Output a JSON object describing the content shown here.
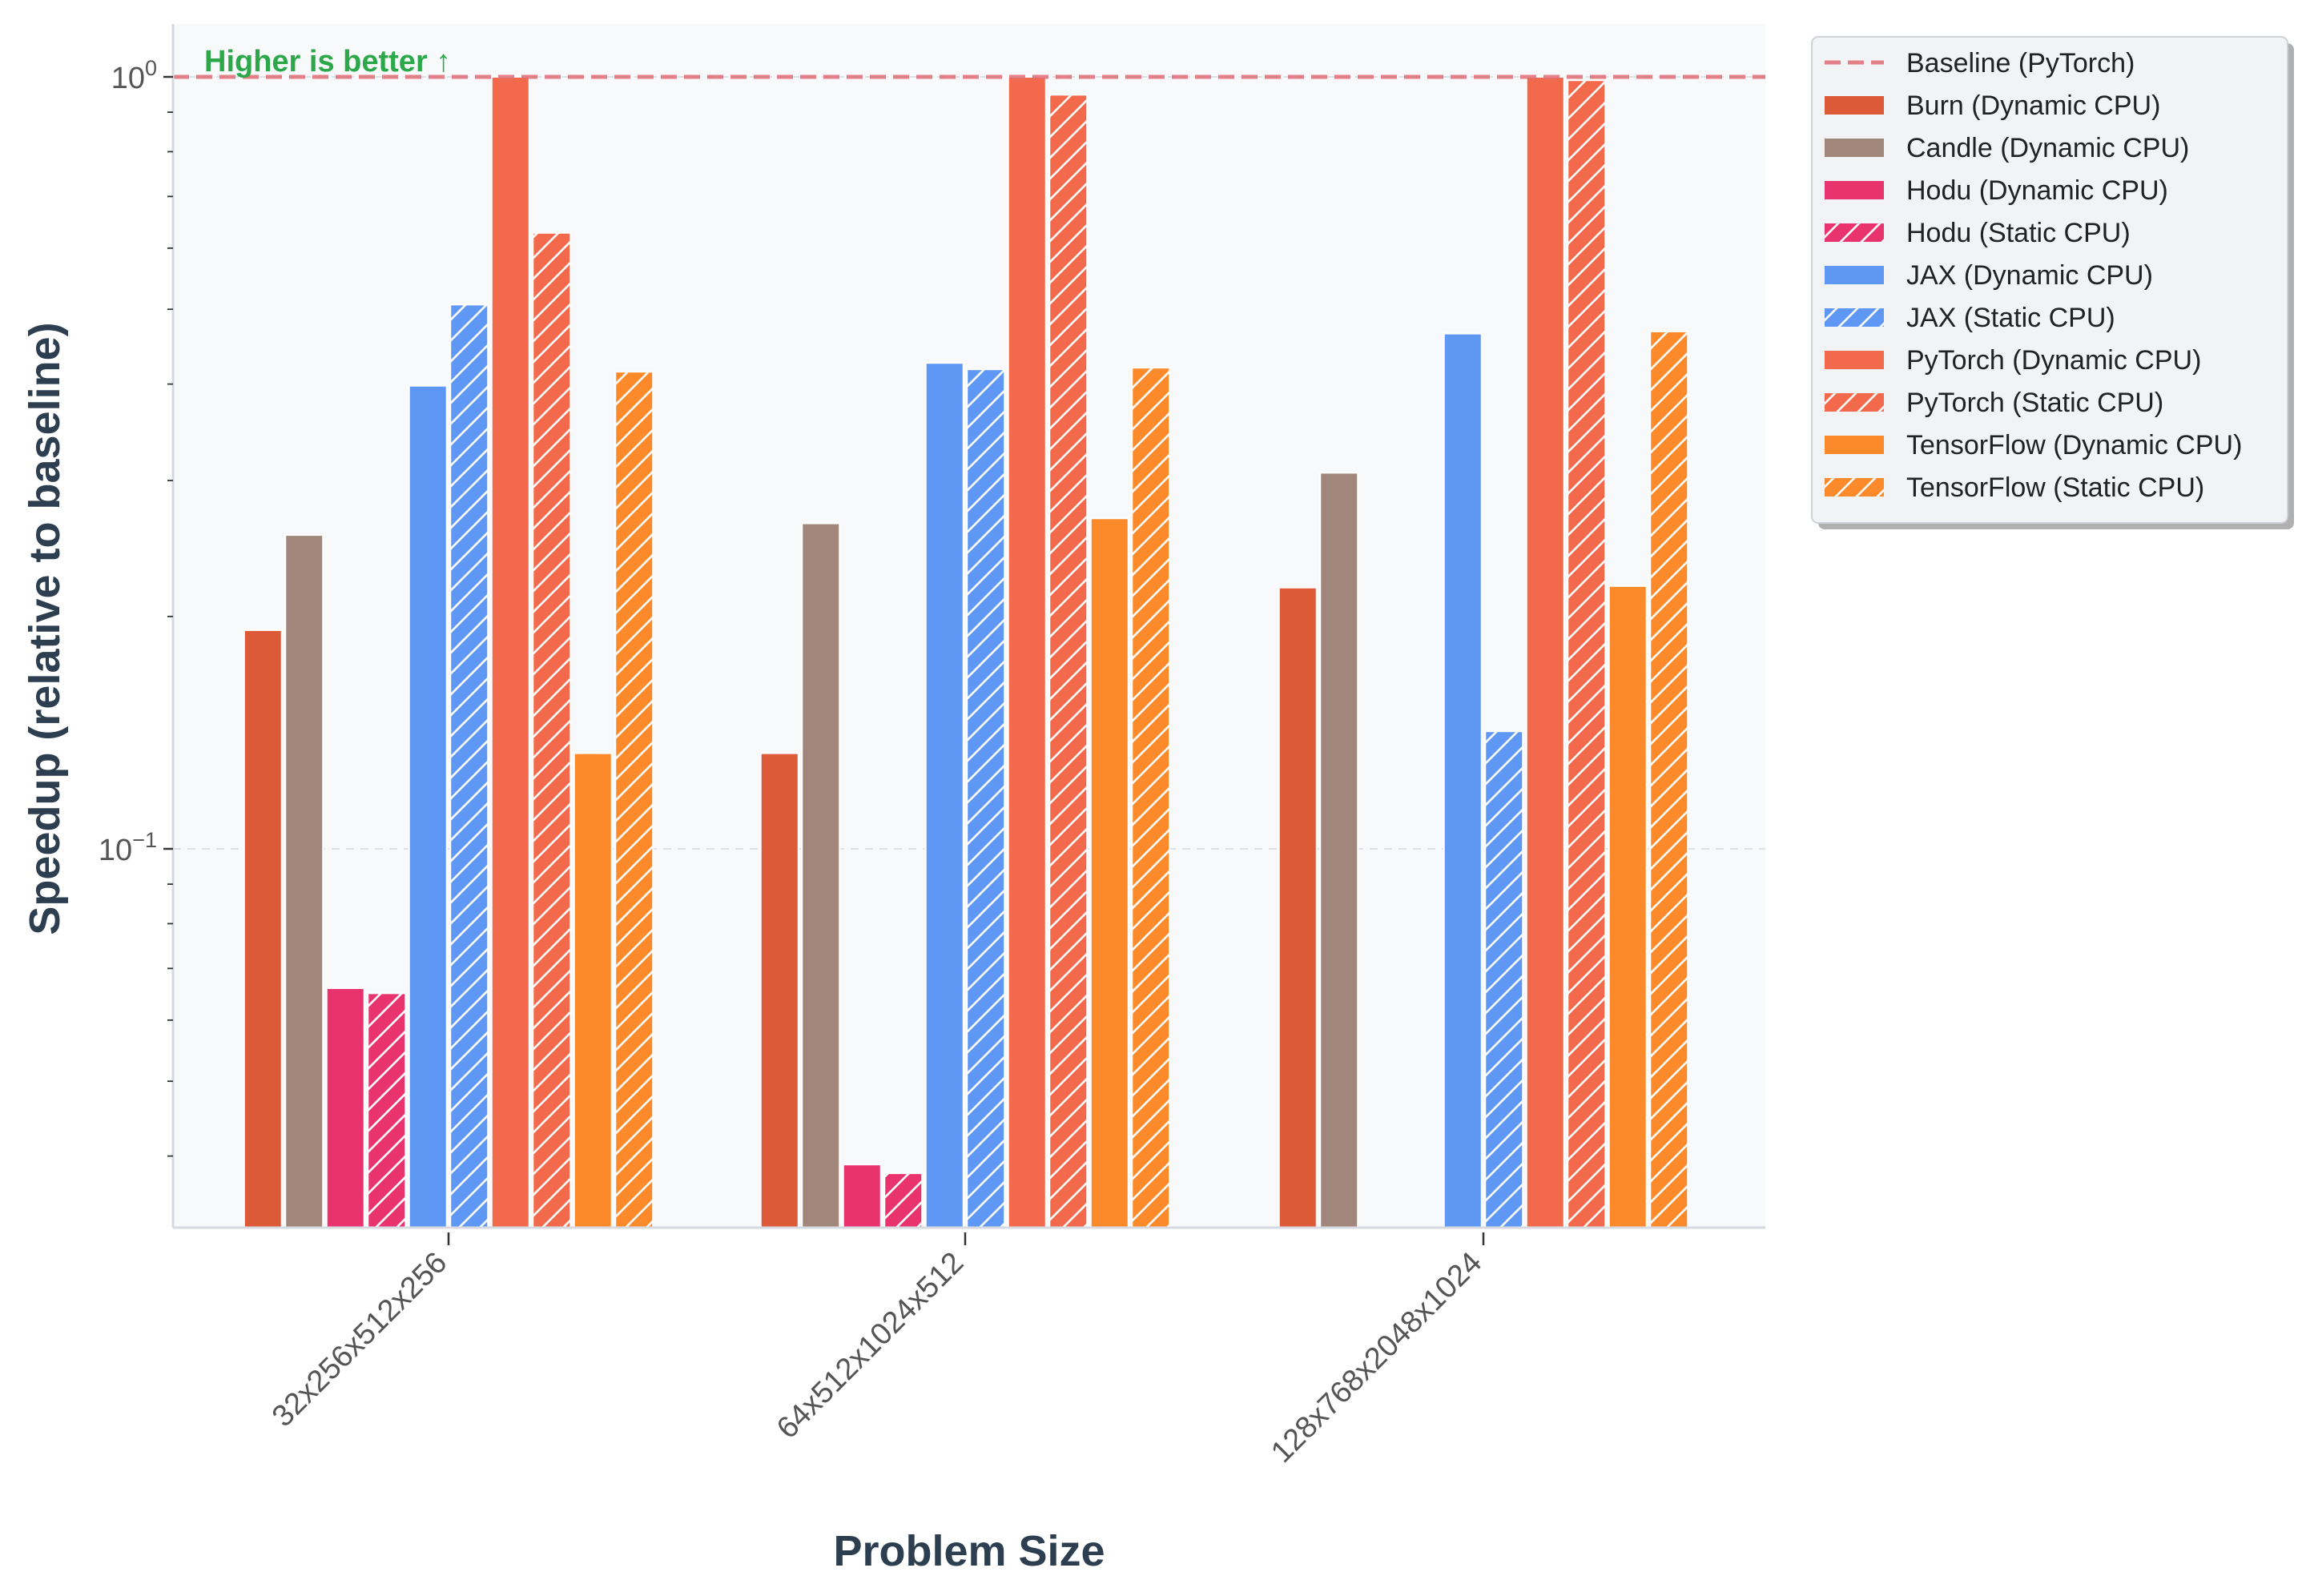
{
  "chart_data": {
    "type": "bar",
    "title": "",
    "xlabel": "Problem Size",
    "ylabel": "Speedup (relative to baseline)",
    "yscale": "log",
    "ylim": [
      0.032,
      1.2
    ],
    "y_ticks": [
      {
        "value": 1,
        "base": "10",
        "exp": "0"
      },
      {
        "value": 0.1,
        "base": "10",
        "exp": "−1"
      }
    ],
    "grid": true,
    "legend_position": "outside-right-top",
    "annotation": "Higher is better ↑",
    "categories": [
      "32x256x512x256",
      "64x512x1024x512",
      "128x768x2048x1024"
    ],
    "baseline": {
      "name": "Baseline (PyTorch)",
      "value": 1.0,
      "color": "#e06c75"
    },
    "series": [
      {
        "name": "Burn (Dynamic CPU)",
        "color": "#dc5a38",
        "hatch": false,
        "values": [
          0.192,
          0.133,
          0.218
        ]
      },
      {
        "name": "Candle (Dynamic CPU)",
        "color": "#a1867c",
        "hatch": false,
        "values": [
          0.255,
          0.264,
          0.307
        ]
      },
      {
        "name": "Hodu (Dynamic CPU)",
        "color": "#e8336f",
        "hatch": false,
        "values": [
          0.066,
          0.039,
          null
        ]
      },
      {
        "name": "Hodu (Static CPU)",
        "color": "#e8336f",
        "hatch": true,
        "values": [
          0.065,
          0.038,
          null
        ]
      },
      {
        "name": "JAX (Dynamic CPU)",
        "color": "#5f97f5",
        "hatch": false,
        "values": [
          0.398,
          0.426,
          0.465
        ]
      },
      {
        "name": "JAX (Static CPU)",
        "color": "#5f97f5",
        "hatch": true,
        "values": [
          0.507,
          0.418,
          0.142
        ]
      },
      {
        "name": "PyTorch (Dynamic CPU)",
        "color": "#f2694b",
        "hatch": false,
        "values": [
          1.0,
          1.0,
          1.0
        ]
      },
      {
        "name": "PyTorch (Static CPU)",
        "color": "#f2694b",
        "hatch": true,
        "values": [
          0.628,
          0.948,
          0.99
        ]
      },
      {
        "name": "TensorFlow (Dynamic CPU)",
        "color": "#fd8a2a",
        "hatch": false,
        "values": [
          0.133,
          0.268,
          0.219
        ]
      },
      {
        "name": "TensorFlow (Static CPU)",
        "color": "#fd8a2a",
        "hatch": true,
        "values": [
          0.415,
          0.42,
          0.468
        ]
      }
    ]
  }
}
